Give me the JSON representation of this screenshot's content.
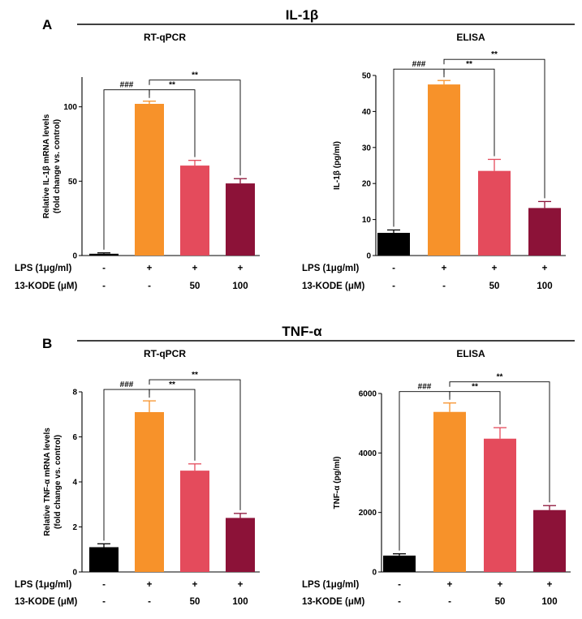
{
  "sections": [
    {
      "letter": "A",
      "title": "IL-1β",
      "charts": [
        {
          "type": "bar",
          "title": "RT-qPCR",
          "ylabel_lines": [
            "Relative IL-1β mRNA levels",
            "(fold change vs. control)"
          ],
          "ylim": [
            0,
            120
          ],
          "yticks": [
            0,
            50,
            100
          ],
          "values": [
            1.2,
            102,
            60.5,
            48.5
          ],
          "errors": [
            0.6,
            1.8,
            3.5,
            3.2
          ],
          "colors": [
            "#000000",
            "#f7922a",
            "#e44b5c",
            "#8c1238"
          ],
          "conditions": [
            {
              "label": "LPS (1μg/ml)",
              "values": [
                "-",
                "+",
                "+",
                "+"
              ]
            },
            {
              "label": "13-KODE  (μM)",
              "values": [
                "-",
                "-",
                "50",
                "100"
              ]
            }
          ],
          "comparisons": [
            {
              "from": 0,
              "to": 1,
              "label": "###",
              "level": 0
            },
            {
              "from": 1,
              "to": 2,
              "label": "**",
              "level": 0
            },
            {
              "from": 1,
              "to": 3,
              "label": "**",
              "level": 1
            }
          ]
        },
        {
          "type": "bar",
          "title": "ELISA",
          "ylabel_lines": [
            "IL-1β (pg/ml)"
          ],
          "ylim": [
            0,
            50
          ],
          "yticks": [
            0,
            10,
            20,
            30,
            40,
            50
          ],
          "values": [
            6.3,
            47.5,
            23.5,
            13.2
          ],
          "errors": [
            0.8,
            1.1,
            3.2,
            1.8
          ],
          "colors": [
            "#000000",
            "#f7922a",
            "#e44b5c",
            "#8c1238"
          ],
          "conditions": [
            {
              "label": "LPS (1μg/ml)",
              "values": [
                "-",
                "+",
                "+",
                "+"
              ]
            },
            {
              "label": "13-KODE  (μM)",
              "values": [
                "-",
                "-",
                "50",
                "100"
              ]
            }
          ],
          "comparisons": [
            {
              "from": 0,
              "to": 1,
              "label": "###",
              "level": 0
            },
            {
              "from": 1,
              "to": 2,
              "label": "**",
              "level": 0
            },
            {
              "from": 1,
              "to": 3,
              "label": "**",
              "level": 1
            }
          ]
        }
      ]
    },
    {
      "letter": "B",
      "title": "TNF-α",
      "charts": [
        {
          "type": "bar",
          "title": "RT-qPCR",
          "ylabel_lines": [
            "Relative TNF-α  mRNA levels",
            "(fold change vs. control)"
          ],
          "ylim": [
            0,
            8
          ],
          "yticks": [
            0,
            2,
            4,
            6,
            8
          ],
          "values": [
            1.1,
            7.1,
            4.5,
            2.4
          ],
          "errors": [
            0.15,
            0.5,
            0.3,
            0.2
          ],
          "colors": [
            "#000000",
            "#f7922a",
            "#e44b5c",
            "#8c1238"
          ],
          "conditions": [
            {
              "label": "LPS (1μg/ml)",
              "values": [
                "-",
                "+",
                "+",
                "+"
              ]
            },
            {
              "label": "13-KODE  (μM)",
              "values": [
                "-",
                "-",
                "50",
                "100"
              ]
            }
          ],
          "comparisons": [
            {
              "from": 0,
              "to": 1,
              "label": "###",
              "level": 0
            },
            {
              "from": 1,
              "to": 2,
              "label": "**",
              "level": 0
            },
            {
              "from": 1,
              "to": 3,
              "label": "**",
              "level": 1
            }
          ]
        },
        {
          "type": "bar",
          "title": "ELISA",
          "ylabel_lines": [
            "TNF-α  (pg/ml)"
          ],
          "ylim": [
            0,
            6000
          ],
          "yticks": [
            0,
            2000,
            4000,
            6000
          ],
          "values": [
            550,
            5380,
            4480,
            2080
          ],
          "errors": [
            60,
            300,
            370,
            150
          ],
          "colors": [
            "#000000",
            "#f7922a",
            "#e44b5c",
            "#8c1238"
          ],
          "conditions": [
            {
              "label": "LPS (1μg/ml)",
              "values": [
                "-",
                "+",
                "+",
                "+"
              ]
            },
            {
              "label": "13-KODE  (μM)",
              "values": [
                "-",
                "-",
                "50",
                "100"
              ]
            }
          ],
          "comparisons": [
            {
              "from": 0,
              "to": 1,
              "label": "###",
              "level": 0
            },
            {
              "from": 1,
              "to": 2,
              "label": "**",
              "level": 0
            },
            {
              "from": 1,
              "to": 3,
              "label": "**",
              "level": 1
            }
          ]
        }
      ]
    }
  ]
}
